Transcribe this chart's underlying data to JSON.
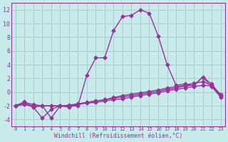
{
  "xlabel": "Windchill (Refroidissement éolien,°C)",
  "x": [
    0,
    1,
    2,
    3,
    4,
    5,
    6,
    7,
    8,
    9,
    10,
    11,
    12,
    13,
    14,
    15,
    16,
    17,
    18,
    19,
    20,
    21,
    22,
    23
  ],
  "line1": [
    -2,
    -1.8,
    -2.0,
    -2.0,
    -2.0,
    -2.0,
    -2.0,
    -1.8,
    -1.6,
    -1.5,
    -1.3,
    -1.1,
    -1.0,
    -0.7,
    -0.5,
    -0.3,
    -0.1,
    0.2,
    0.4,
    0.6,
    0.8,
    1.0,
    0.9,
    -0.5
  ],
  "line2": [
    -2,
    -1.5,
    -1.8,
    -2.0,
    -3.8,
    -2.0,
    -2.0,
    -2.0,
    2.5,
    5.0,
    5.0,
    9.0,
    11.0,
    11.2,
    12.0,
    11.5,
    8.2,
    4.0,
    1.0,
    1.2,
    0.9,
    2.2,
    0.8,
    -0.7
  ],
  "line3": [
    -2,
    -1.7,
    -2.2,
    -2.0,
    -2.0,
    -2.0,
    -1.9,
    -1.7,
    -1.5,
    -1.3,
    -1.1,
    -0.9,
    -0.7,
    -0.5,
    -0.3,
    -0.1,
    0.1,
    0.4,
    0.6,
    0.9,
    1.0,
    2.2,
    1.2,
    -0.5
  ],
  "line4": [
    -2,
    -1.4,
    -2.2,
    -3.8,
    -2.5,
    -2.0,
    -2.2,
    -1.8,
    -1.5,
    -1.3,
    -1.1,
    -0.8,
    -0.5,
    -0.3,
    -0.1,
    0.1,
    0.3,
    0.6,
    0.8,
    1.0,
    1.3,
    1.5,
    1.0,
    -0.3
  ],
  "color": "#993399",
  "bg_color": "#c8eaea",
  "grid_color": "#aacccc",
  "ylim": [
    -5,
    13
  ],
  "yticks": [
    -4,
    -2,
    0,
    2,
    4,
    6,
    8,
    10,
    12
  ],
  "xticks": [
    0,
    1,
    2,
    3,
    4,
    5,
    6,
    7,
    8,
    9,
    10,
    11,
    12,
    13,
    14,
    15,
    16,
    17,
    18,
    19,
    20,
    21,
    22,
    23
  ],
  "marker": "D",
  "markersize": 2.5,
  "linewidth": 1.0
}
